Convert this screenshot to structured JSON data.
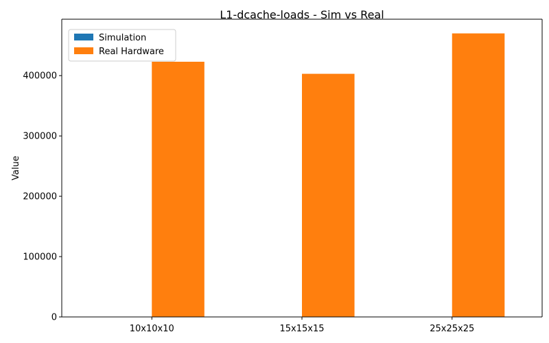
{
  "chart_data": {
    "type": "bar",
    "title": "L1-dcache-loads - Sim vs Real",
    "xlabel": "",
    "ylabel": "Value",
    "categories": [
      "10x10x10",
      "15x15x15",
      "25x25x25"
    ],
    "series": [
      {
        "name": "Simulation",
        "values": [
          0,
          0,
          0
        ],
        "color": "#1f77b4"
      },
      {
        "name": "Real Hardware",
        "values": [
          423000,
          403000,
          470000
        ],
        "color": "#ff7f0e"
      }
    ],
    "ylim": [
      0,
      493500
    ],
    "yticks": [
      0,
      100000,
      200000,
      300000,
      400000
    ],
    "legend": "top-left",
    "grid": false
  }
}
